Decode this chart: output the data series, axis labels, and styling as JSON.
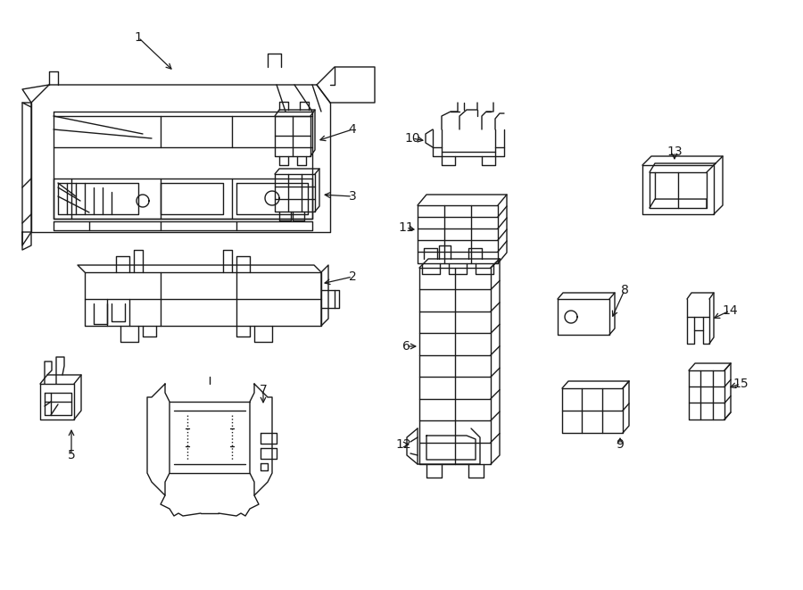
{
  "background_color": "#ffffff",
  "line_color": "#1a1a1a",
  "line_width": 1.0,
  "fig_width": 9.0,
  "fig_height": 6.61,
  "dpi": 100
}
